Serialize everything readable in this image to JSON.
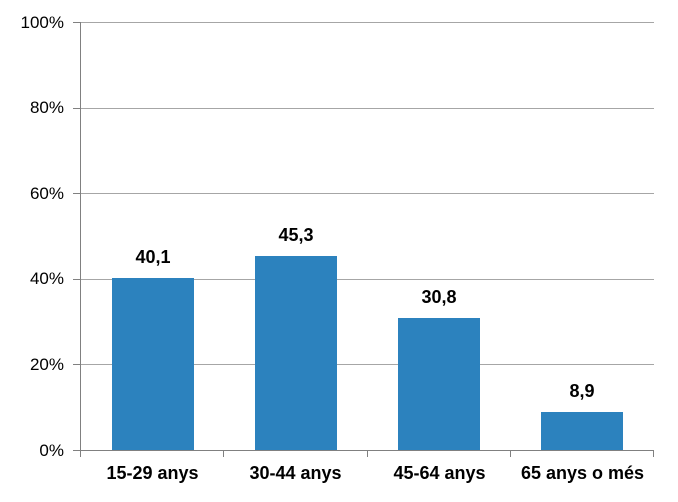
{
  "chart_data": {
    "type": "bar",
    "title": "",
    "categories": [
      "15-29 anys",
      "30-44 anys",
      "45-64 anys",
      "65 anys o més"
    ],
    "values": [
      40.1,
      45.3,
      30.8,
      8.9
    ],
    "value_labels": [
      "40,1",
      "45,3",
      "30,8",
      "8,9"
    ],
    "y_ticks": [
      "0%",
      "20%",
      "40%",
      "60%",
      "80%",
      "100%"
    ],
    "y_tick_values": [
      0,
      20,
      40,
      60,
      80,
      100
    ],
    "ylim": [
      0,
      100
    ],
    "xlabel": "",
    "ylabel": "",
    "grid": true,
    "legend": "none",
    "bar_color": "#2c82be",
    "gridline_color": "#a6a6a6",
    "axis_color": "#808080",
    "text_color": "#000000"
  }
}
